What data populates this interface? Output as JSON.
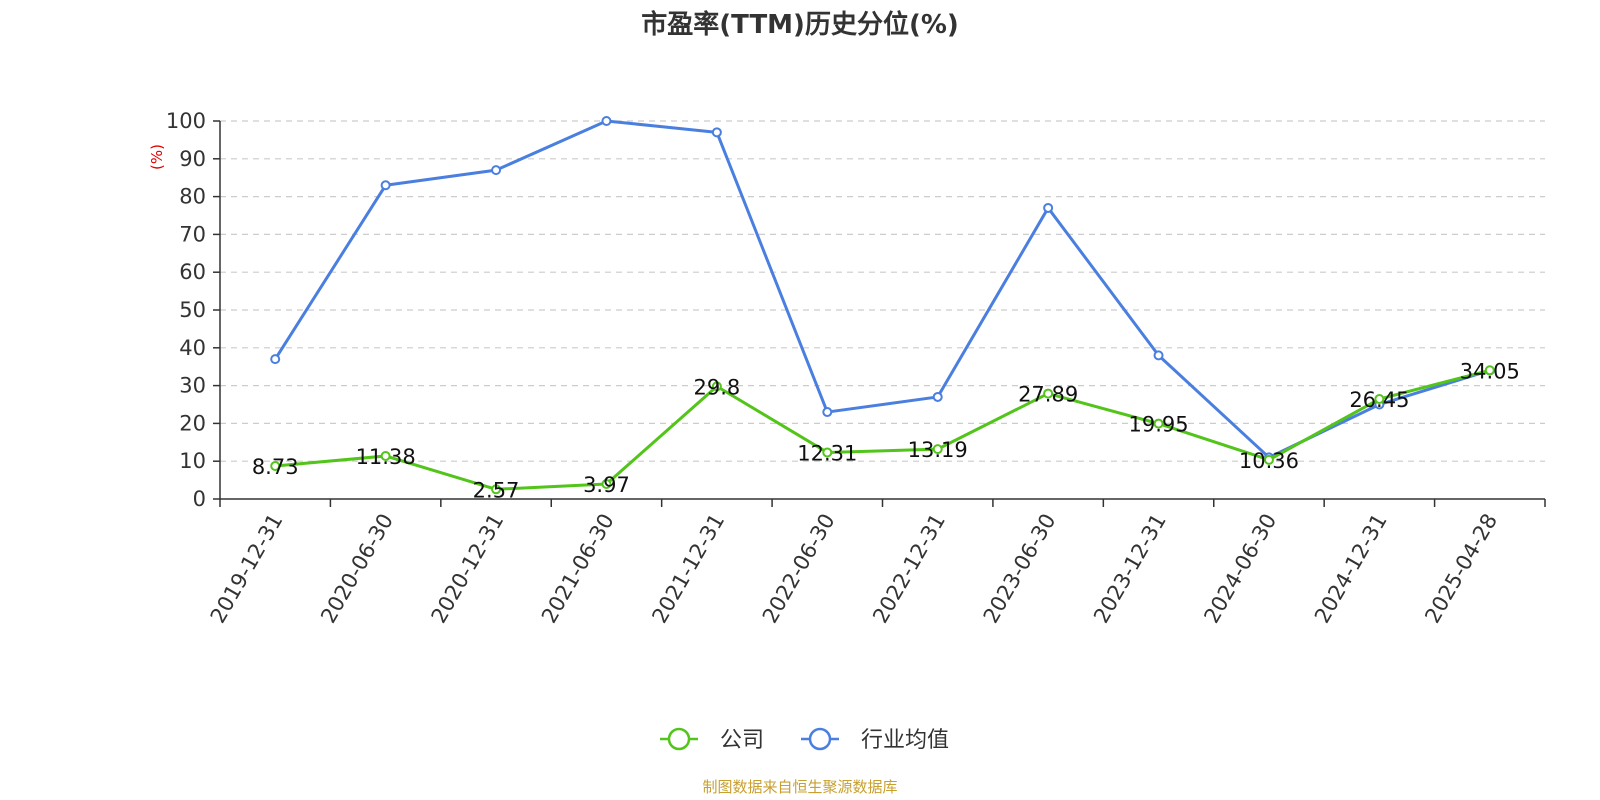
{
  "chart_data": {
    "type": "line",
    "title": "市盈率(TTM)历史分位(%)",
    "ylabel": "(%)",
    "ylim": [
      0,
      100
    ],
    "yticks": [
      0,
      10,
      20,
      30,
      40,
      50,
      60,
      70,
      80,
      90,
      100
    ],
    "grid": true,
    "legend_position": "bottom-center",
    "categories": [
      "2019-12-31",
      "2020-06-30",
      "2020-12-31",
      "2021-06-30",
      "2021-12-31",
      "2022-06-30",
      "2022-12-31",
      "2023-06-30",
      "2023-12-31",
      "2024-06-30",
      "2024-12-31",
      "2025-04-28"
    ],
    "series": [
      {
        "name": "公司",
        "color": "#52c41a",
        "values": [
          8.73,
          11.38,
          2.57,
          3.97,
          29.8,
          12.31,
          13.19,
          27.89,
          19.95,
          10.36,
          26.45,
          34.05
        ],
        "labels": [
          "8.73",
          "11.38",
          "2.57",
          "3.97",
          "29.8",
          "12.31",
          "13.19",
          "27.89",
          "19.95",
          "10.36",
          "26.45",
          "34.05"
        ]
      },
      {
        "name": "行业均值",
        "color": "#4a7fe0",
        "values": [
          37,
          83,
          87,
          100,
          97,
          23,
          27,
          77,
          38,
          11,
          25,
          34
        ]
      }
    ]
  },
  "source_text": "制图数据来自恒生聚源数据库",
  "colors": {
    "axis": "#333333",
    "grid": "#cccccc",
    "ylabel": "#e00000",
    "source": "#c8a030"
  }
}
